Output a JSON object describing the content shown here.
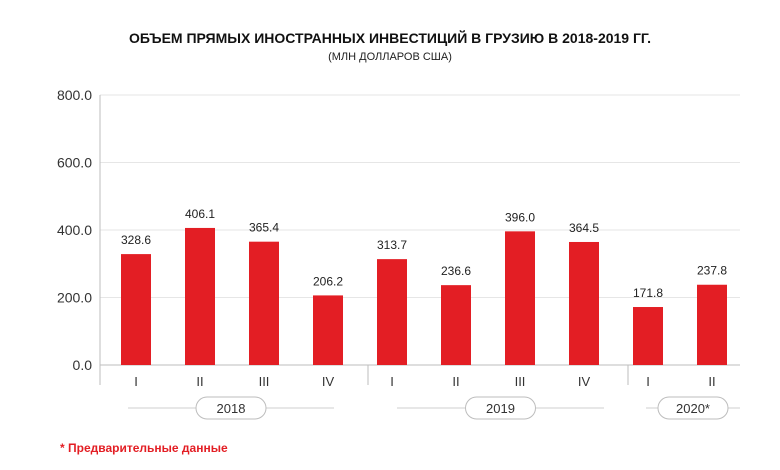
{
  "chart_data": {
    "type": "bar",
    "title": "ОБЪЕМ ПРЯМЫХ ИНОСТРАННЫХ ИНВЕСТИЦИЙ В ГРУЗИЮ В 2018-2019 ГГ.",
    "subtitle": "(МЛН ДОЛЛАРОВ США)",
    "categories": [
      "I",
      "II",
      "III",
      "IV",
      "I",
      "II",
      "III",
      "IV",
      "I",
      "II"
    ],
    "values": [
      328.6,
      406.1,
      365.4,
      206.2,
      313.7,
      236.6,
      396.0,
      364.5,
      171.8,
      237.8
    ],
    "value_labels": [
      "328.6",
      "406.1",
      "365.4",
      "206.2",
      "313.7",
      "236.6",
      "396.0",
      "364.5",
      "171.8",
      "237.8"
    ],
    "groups": [
      {
        "label": "2018",
        "count": 4
      },
      {
        "label": "2019",
        "count": 4
      },
      {
        "label": "2020*",
        "count": 2
      }
    ],
    "yticks": [
      "0.0",
      "200.0",
      "400.0",
      "600.0",
      "800.0"
    ],
    "ylim": [
      0,
      800
    ],
    "grid": true,
    "bar_color": "#e31e24",
    "footnote": "* Предварительные данные"
  }
}
